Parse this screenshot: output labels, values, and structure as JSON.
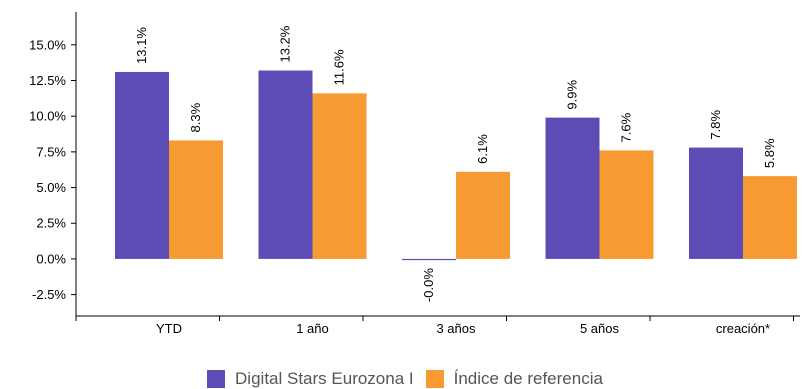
{
  "chart_data": {
    "type": "bar",
    "categories": [
      "YTD",
      "1 año",
      "3 años",
      "5 años",
      "creación*"
    ],
    "series": [
      {
        "name": "Digital Stars Eurozona I",
        "color": "#5b4db5",
        "values": [
          13.1,
          13.2,
          -0.0,
          9.9,
          7.8
        ],
        "labels": [
          "13.1%",
          "13.2%",
          "-0.0%",
          "9.9%",
          "7.8%"
        ]
      },
      {
        "name": "Índice de referencia",
        "color": "#f79a31",
        "values": [
          8.3,
          11.6,
          6.1,
          7.6,
          5.8
        ],
        "labels": [
          "8.3%",
          "11.6%",
          "6.1%",
          "7.6%",
          "5.8%"
        ]
      }
    ],
    "ylim": [
      -4.0,
      17.3
    ],
    "yticks": [
      -2.5,
      0.0,
      2.5,
      5.0,
      7.5,
      10.0,
      12.5,
      15.0
    ],
    "ytick_labels": [
      "-2.5%",
      "0.0%",
      "2.5%",
      "5.0%",
      "7.5%",
      "10.0%",
      "12.5%",
      "15.0%"
    ],
    "grid": false,
    "legend": "bottom-center"
  }
}
